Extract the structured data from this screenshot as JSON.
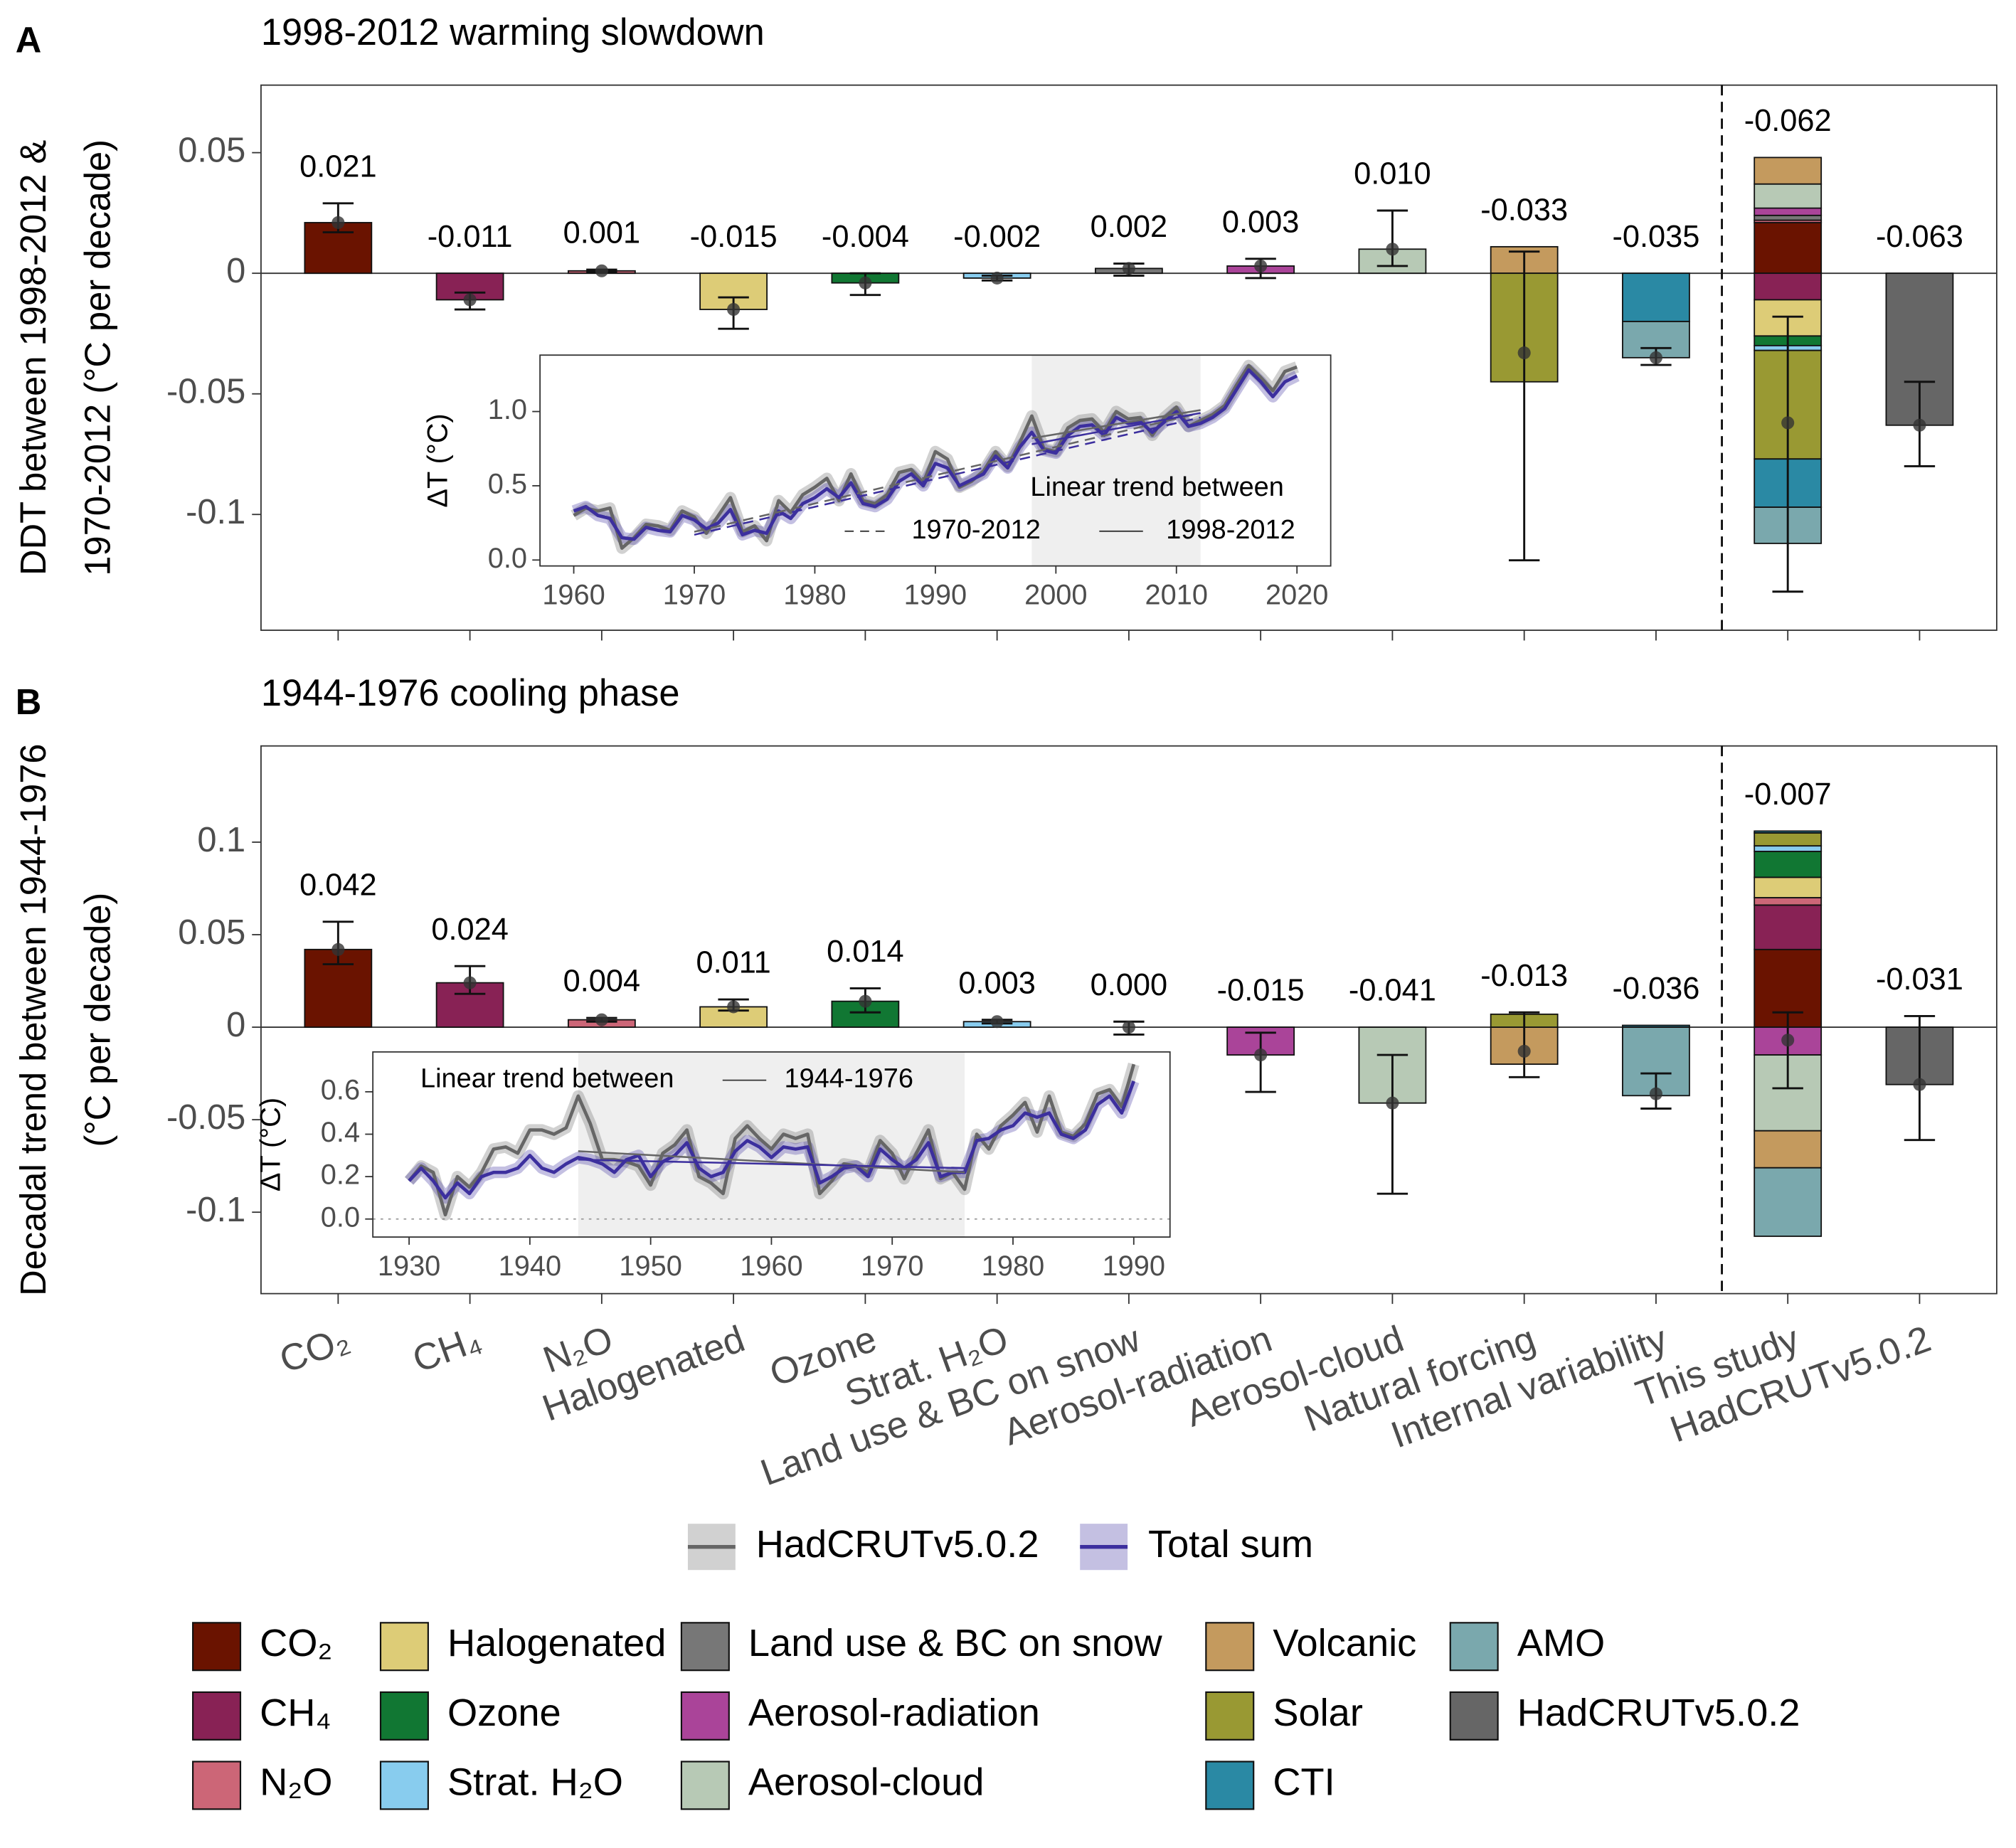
{
  "chart_data": [
    {
      "type": "bar",
      "panel_label": "A",
      "title": "1998-2012 warming slowdown",
      "y_label": [
        "DDT between 1998-2012 &",
        "1970-2012  (°C per decade)"
      ],
      "categories": [
        null,
        null,
        null,
        null,
        null,
        null,
        null,
        null,
        null,
        null,
        null,
        null,
        null
      ],
      "values": [
        0.021,
        -0.011,
        0.001,
        -0.015,
        -0.004,
        -0.002,
        0.002,
        0.003,
        0.01,
        -0.033,
        -0.035,
        -0.062,
        -0.063
      ],
      "value_labels": [
        "0.021",
        "-0.011",
        "0.001",
        "-0.015",
        "-0.004",
        "-0.002",
        "0.002",
        "0.003",
        "0.010",
        "-0.033",
        "-0.035",
        "-0.062",
        "-0.063"
      ],
      "errors": [
        [
          0.017,
          0.029
        ],
        [
          -0.015,
          -0.008
        ],
        [
          0.0005,
          0.0015
        ],
        [
          -0.023,
          -0.01
        ],
        [
          -0.009,
          0.0
        ],
        [
          -0.003,
          -0.001
        ],
        [
          -0.001,
          0.004
        ],
        [
          -0.002,
          0.006
        ],
        [
          0.003,
          0.026
        ],
        [
          -0.119,
          0.009
        ],
        [
          -0.038,
          -0.031
        ],
        [
          -0.132,
          -0.018
        ],
        [
          -0.08,
          -0.045
        ]
      ],
      "colors": [
        "#6a1300",
        "#882255",
        "#cc6677",
        "#ddcc77",
        "#117733",
        "#88ccee",
        "#777777",
        "#aa4499",
        "#b7c9b5",
        null,
        null,
        null,
        "#666666"
      ],
      "segments": [
        null,
        null,
        null,
        null,
        null,
        null,
        null,
        null,
        null,
        [
          {
            "name": "Volcanic",
            "value": 0.011
          },
          {
            "name": "Solar",
            "value": -0.045
          }
        ],
        [
          {
            "name": "CTI",
            "value": -0.02
          },
          {
            "name": "AMO",
            "value": -0.015
          }
        ],
        [
          {
            "name": "CO₂",
            "value": 0.021
          },
          {
            "name": "CH₄",
            "value": -0.011
          },
          {
            "name": "N₂O",
            "value": 0.001
          },
          {
            "name": "Halogenated",
            "value": -0.015
          },
          {
            "name": "Ozone",
            "value": -0.004
          },
          {
            "name": "Strat. H₂O",
            "value": -0.002
          },
          {
            "name": "Land use & BC on snow",
            "value": 0.002
          },
          {
            "name": "Aerosol-radiation",
            "value": 0.003
          },
          {
            "name": "Aerosol-cloud",
            "value": 0.01
          },
          {
            "name": "Volcanic",
            "value": 0.011
          },
          {
            "name": "Solar",
            "value": -0.045
          },
          {
            "name": "CTI",
            "value": -0.02
          },
          {
            "name": "AMO",
            "value": -0.015
          }
        ],
        null
      ],
      "ylim": [
        -0.148,
        0.078
      ],
      "yticks": [
        -0.1,
        -0.05,
        0,
        0.05
      ],
      "inset": {
        "type": "line",
        "y_label": "ΔT (°C)",
        "xlim": [
          1957.2,
          2022.8
        ],
        "ylim": [
          -0.04,
          1.38
        ],
        "xticks": [
          1960,
          1970,
          1980,
          1990,
          2000,
          2010,
          2020
        ],
        "yticks": [
          {
            "value": 0,
            "label": "0.0"
          },
          {
            "value": 0.5,
            "label": "0.5"
          },
          {
            "value": 1,
            "label": "1.0"
          }
        ],
        "shade": [
          1998,
          2012
        ],
        "zero_line": false,
        "x": [
          1960,
          1961,
          1962,
          1963,
          1964,
          1965,
          1966,
          1967,
          1968,
          1969,
          1970,
          1971,
          1972,
          1973,
          1974,
          1975,
          1976,
          1977,
          1978,
          1979,
          1980,
          1981,
          1982,
          1983,
          1984,
          1985,
          1986,
          1987,
          1988,
          1989,
          1990,
          1991,
          1992,
          1993,
          1994,
          1995,
          1996,
          1997,
          1998,
          1999,
          2000,
          2001,
          2002,
          2003,
          2004,
          2005,
          2006,
          2007,
          2008,
          2009,
          2010,
          2011,
          2012,
          2013,
          2014,
          2015,
          2016,
          2017,
          2018,
          2019,
          2020
        ],
        "series": [
          {
            "name": "HadCRUTv5.0.2",
            "color": "#666666",
            "values": [
              0.3,
              0.35,
              0.33,
              0.35,
              0.08,
              0.15,
              0.24,
              0.23,
              0.2,
              0.33,
              0.29,
              0.18,
              0.3,
              0.42,
              0.19,
              0.23,
              0.13,
              0.4,
              0.32,
              0.44,
              0.49,
              0.55,
              0.4,
              0.58,
              0.4,
              0.38,
              0.44,
              0.59,
              0.61,
              0.52,
              0.73,
              0.68,
              0.49,
              0.53,
              0.6,
              0.73,
              0.63,
              0.79,
              0.97,
              0.75,
              0.73,
              0.89,
              0.94,
              0.95,
              0.86,
              1.0,
              0.95,
              0.96,
              0.84,
              0.96,
              1.03,
              0.9,
              0.94,
              0.98,
              1.04,
              1.18,
              1.31,
              1.23,
              1.14,
              1.27,
              1.3
            ]
          },
          {
            "name": "Total sum",
            "color": "#3c2f9e",
            "values": [
              0.33,
              0.36,
              0.3,
              0.28,
              0.15,
              0.14,
              0.22,
              0.2,
              0.19,
              0.3,
              0.27,
              0.21,
              0.25,
              0.34,
              0.17,
              0.2,
              0.18,
              0.33,
              0.28,
              0.38,
              0.42,
              0.48,
              0.42,
              0.52,
              0.38,
              0.36,
              0.41,
              0.53,
              0.58,
              0.5,
              0.65,
              0.62,
              0.5,
              0.54,
              0.58,
              0.7,
              0.62,
              0.76,
              0.86,
              0.74,
              0.72,
              0.84,
              0.9,
              0.91,
              0.84,
              0.96,
              0.92,
              0.93,
              0.86,
              0.93,
              1.0,
              0.9,
              0.92,
              0.96,
              1.02,
              1.15,
              1.28,
              1.2,
              1.1,
              1.2,
              1.24
            ]
          }
        ],
        "trends": [
          {
            "color": "#666666",
            "dash": true,
            "x": [
              1970,
              2012
            ],
            "values": [
              0.19,
              0.99
            ]
          },
          {
            "color": "#3c2f9e",
            "dash": true,
            "x": [
              1970,
              2012
            ],
            "values": [
              0.17,
              0.96
            ]
          },
          {
            "color": "#666666",
            "dash": false,
            "x": [
              1998,
              2012
            ],
            "values": [
              0.82,
              1.01
            ]
          },
          {
            "color": "#3c2f9e",
            "dash": false,
            "x": [
              1998,
              2012
            ],
            "values": [
              0.78,
              0.99
            ]
          }
        ],
        "trend_legend": {
          "title": "Linear trend between",
          "items": [
            {
              "label": "1970-2012",
              "dash": true
            },
            {
              "label": "1998-2012",
              "dash": false
            }
          ]
        }
      }
    },
    {
      "type": "bar",
      "panel_label": "B",
      "title": "1944-1976 cooling phase",
      "y_label": [
        "Decadal trend between 1944-1976",
        "(°C per decade)"
      ],
      "categories": [
        "CO₂",
        "CH₄",
        "N₂O",
        "Halogenated",
        "Ozone",
        "Strat. H₂O",
        "Land use & BC on snow",
        "Aerosol-radiation",
        "Aerosol-cloud",
        "Natural forcing",
        "Internal variability",
        "This study",
        "HadCRUTv5.0.2"
      ],
      "values": [
        0.042,
        0.024,
        0.004,
        0.011,
        0.014,
        0.003,
        0,
        -0.015,
        -0.041,
        -0.013,
        -0.036,
        -0.007,
        -0.031
      ],
      "value_labels": [
        "0.042",
        "0.024",
        "0.004",
        "0.011",
        "0.014",
        "0.003",
        "0.000",
        "-0.015",
        "-0.041",
        "-0.013",
        "-0.036",
        "-0.007",
        "-0.031"
      ],
      "errors": [
        [
          0.034,
          0.057
        ],
        [
          0.018,
          0.033
        ],
        [
          0.003,
          0.005
        ],
        [
          0.009,
          0.015
        ],
        [
          0.008,
          0.021
        ],
        [
          0.002,
          0.004
        ],
        [
          -0.004,
          0.003
        ],
        [
          -0.035,
          -0.003
        ],
        [
          -0.09,
          -0.015
        ],
        [
          -0.027,
          0.008
        ],
        [
          -0.044,
          -0.025
        ],
        [
          -0.033,
          0.008
        ],
        [
          -0.061,
          0.006
        ]
      ],
      "colors": [
        "#6a1300",
        "#882255",
        "#cc6677",
        "#ddcc77",
        "#117733",
        "#88ccee",
        "#777777",
        "#aa4499",
        "#b7c9b5",
        null,
        null,
        null,
        "#666666"
      ],
      "segments": [
        null,
        null,
        null,
        null,
        null,
        null,
        null,
        null,
        null,
        [
          {
            "name": "Volcanic",
            "value": -0.02
          },
          {
            "name": "Solar",
            "value": 0.007
          }
        ],
        [
          {
            "name": "CTI",
            "value": 0.001
          },
          {
            "name": "AMO",
            "value": -0.037
          }
        ],
        [
          {
            "name": "CO₂",
            "value": 0.042
          },
          {
            "name": "CH₄",
            "value": 0.024
          },
          {
            "name": "N₂O",
            "value": 0.004
          },
          {
            "name": "Halogenated",
            "value": 0.011
          },
          {
            "name": "Ozone",
            "value": 0.014
          },
          {
            "name": "Strat. H₂O",
            "value": 0.003
          },
          {
            "name": "Land use & BC on snow",
            "value": 0
          },
          {
            "name": "Aerosol-radiation",
            "value": -0.015
          },
          {
            "name": "Aerosol-cloud",
            "value": -0.041
          },
          {
            "name": "Volcanic",
            "value": -0.02
          },
          {
            "name": "Solar",
            "value": 0.007
          },
          {
            "name": "CTI",
            "value": 0.001
          },
          {
            "name": "AMO",
            "value": -0.037
          }
        ],
        null
      ],
      "ylim": [
        -0.144,
        0.152
      ],
      "yticks": [
        -0.1,
        -0.05,
        0,
        0.05,
        0.1
      ],
      "inset": {
        "type": "line",
        "y_label": "ΔT (°C)",
        "xlim": [
          1927,
          1993
        ],
        "ylim": [
          -0.085,
          0.788
        ],
        "xticks": [
          1930,
          1940,
          1950,
          1960,
          1970,
          1980,
          1990
        ],
        "yticks": [
          {
            "value": 0,
            "label": "0.0"
          },
          {
            "value": 0.2,
            "label": "0.2"
          },
          {
            "value": 0.4,
            "label": "0.4"
          },
          {
            "value": 0.6,
            "label": "0.6"
          }
        ],
        "shade": [
          1944,
          1976
        ],
        "zero_line": true,
        "x": [
          1930,
          1931,
          1932,
          1933,
          1934,
          1935,
          1936,
          1937,
          1938,
          1939,
          1940,
          1941,
          1942,
          1943,
          1944,
          1945,
          1946,
          1947,
          1948,
          1949,
          1950,
          1951,
          1952,
          1953,
          1954,
          1955,
          1956,
          1957,
          1958,
          1959,
          1960,
          1961,
          1962,
          1963,
          1964,
          1965,
          1966,
          1967,
          1968,
          1969,
          1970,
          1971,
          1972,
          1973,
          1974,
          1975,
          1976,
          1977,
          1978,
          1979,
          1980,
          1981,
          1982,
          1983,
          1984,
          1985,
          1986,
          1987,
          1988,
          1989,
          1990
        ],
        "series": [
          {
            "name": "HadCRUTv5.0.2",
            "color": "#666666",
            "values": [
              0.18,
              0.25,
              0.22,
              0.02,
              0.2,
              0.15,
              0.22,
              0.33,
              0.34,
              0.31,
              0.42,
              0.42,
              0.4,
              0.43,
              0.58,
              0.45,
              0.28,
              0.28,
              0.27,
              0.25,
              0.16,
              0.31,
              0.35,
              0.42,
              0.2,
              0.17,
              0.12,
              0.38,
              0.44,
              0.38,
              0.33,
              0.4,
              0.38,
              0.4,
              0.12,
              0.18,
              0.26,
              0.25,
              0.22,
              0.37,
              0.31,
              0.19,
              0.31,
              0.42,
              0.19,
              0.22,
              0.14,
              0.4,
              0.33,
              0.44,
              0.49,
              0.55,
              0.41,
              0.58,
              0.41,
              0.39,
              0.45,
              0.59,
              0.61,
              0.53,
              0.73
            ]
          },
          {
            "name": "Total sum",
            "color": "#3c2f9e",
            "values": [
              0.18,
              0.24,
              0.18,
              0.1,
              0.17,
              0.12,
              0.2,
              0.22,
              0.22,
              0.24,
              0.3,
              0.24,
              0.22,
              0.26,
              0.29,
              0.28,
              0.26,
              0.22,
              0.28,
              0.3,
              0.2,
              0.27,
              0.3,
              0.36,
              0.24,
              0.2,
              0.22,
              0.32,
              0.37,
              0.34,
              0.29,
              0.34,
              0.33,
              0.34,
              0.17,
              0.2,
              0.24,
              0.25,
              0.2,
              0.33,
              0.28,
              0.24,
              0.28,
              0.36,
              0.2,
              0.22,
              0.22,
              0.37,
              0.38,
              0.42,
              0.44,
              0.5,
              0.48,
              0.5,
              0.4,
              0.38,
              0.42,
              0.54,
              0.58,
              0.5,
              0.65
            ]
          }
        ],
        "trends": [
          {
            "color": "#666666",
            "dash": false,
            "x": [
              1944,
              1976
            ],
            "values": [
              0.32,
              0.22
            ]
          },
          {
            "color": "#3c2f9e",
            "dash": false,
            "x": [
              1944,
              1976
            ],
            "values": [
              0.28,
              0.24
            ]
          }
        ],
        "trend_legend": {
          "title": "Linear trend between",
          "items": [
            {
              "label": "1944-1976",
              "dash": false
            }
          ]
        }
      }
    }
  ],
  "legend": [
    {
      "name": "CO₂",
      "color": "#6a1300"
    },
    {
      "name": "CH₄",
      "color": "#882255"
    },
    {
      "name": "N₂O",
      "color": "#cc6677"
    },
    {
      "name": "Halogenated",
      "color": "#ddcc77"
    },
    {
      "name": "Ozone",
      "color": "#117733"
    },
    {
      "name": "Strat. H₂O",
      "color": "#88ccee"
    },
    {
      "name": "Land use & BC on snow",
      "color": "#777777"
    },
    {
      "name": "Aerosol-radiation",
      "color": "#aa4499"
    },
    {
      "name": "Aerosol-cloud",
      "color": "#b7c9b5"
    },
    {
      "name": "Volcanic",
      "color": "#c49a5e"
    },
    {
      "name": "Solar",
      "color": "#999933"
    },
    {
      "name": "CTI",
      "color": "#2a89a4"
    },
    {
      "name": "AMO",
      "color": "#7aa8ad"
    },
    {
      "name": "HadCRUTv5.0.2",
      "color": "#666666"
    }
  ]
}
